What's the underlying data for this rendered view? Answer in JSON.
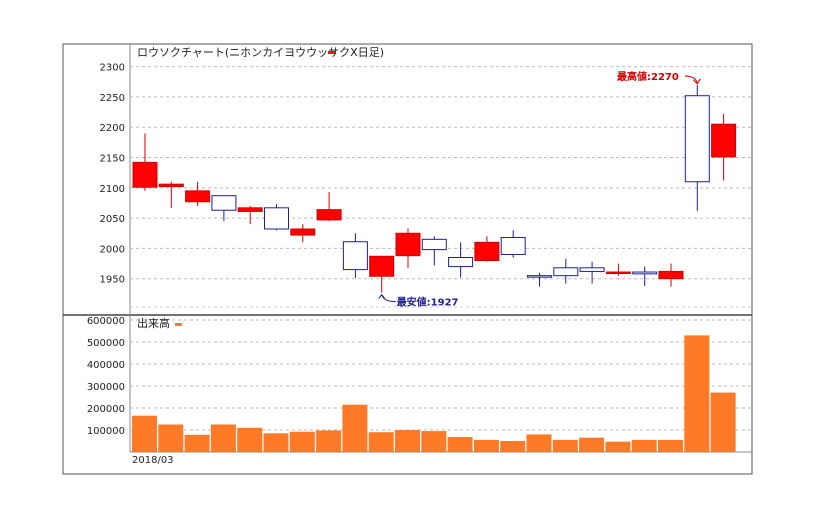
{
  "chart_data": [
    {
      "type": "candlestick",
      "title": "ロウソクチャート(ニホンカイヨウウッサクX日足)",
      "legend_color": "#e8161b",
      "colors": {
        "up": "#ffffff",
        "up_border": "#1f1f8f",
        "down": "#ff0000",
        "down_border": "#d00000"
      },
      "ylim": [
        1900,
        2310
      ],
      "yticks": [
        1950,
        2000,
        2050,
        2100,
        2150,
        2200,
        2250,
        2300
      ],
      "grid": true,
      "candles": [
        {
          "open": 2142,
          "high": 2190,
          "low": 2095,
          "close": 2101
        },
        {
          "open": 2106,
          "high": 2110,
          "low": 2067,
          "close": 2102
        },
        {
          "open": 2095,
          "high": 2110,
          "low": 2070,
          "close": 2077
        },
        {
          "open": 2063,
          "high": 2087,
          "low": 2045,
          "close": 2087
        },
        {
          "open": 2067,
          "high": 2070,
          "low": 2040,
          "close": 2061
        },
        {
          "open": 2032,
          "high": 2073,
          "low": 2030,
          "close": 2067
        },
        {
          "open": 2032,
          "high": 2040,
          "low": 2010,
          "close": 2022
        },
        {
          "open": 2064,
          "high": 2093,
          "low": 2045,
          "close": 2047
        },
        {
          "open": 1965,
          "high": 2025,
          "low": 1951,
          "close": 2011
        },
        {
          "open": 1987,
          "high": 1987,
          "low": 1927,
          "close": 1954
        },
        {
          "open": 2025,
          "high": 2033,
          "low": 1968,
          "close": 1988
        },
        {
          "open": 1998,
          "high": 2020,
          "low": 1972,
          "close": 2015
        },
        {
          "open": 1970,
          "high": 2010,
          "low": 1952,
          "close": 1985
        },
        {
          "open": 2010,
          "high": 2020,
          "low": 1978,
          "close": 1980
        },
        {
          "open": 1990,
          "high": 2030,
          "low": 1985,
          "close": 2018
        },
        {
          "open": 1953,
          "high": 1960,
          "low": 1937,
          "close": 1955
        },
        {
          "open": 1955,
          "high": 1983,
          "low": 1942,
          "close": 1968
        },
        {
          "open": 1962,
          "high": 1978,
          "low": 1942,
          "close": 1968
        },
        {
          "open": 1961,
          "high": 1975,
          "low": 1955,
          "close": 1959
        },
        {
          "open": 1958,
          "high": 1970,
          "low": 1938,
          "close": 1961
        },
        {
          "open": 1962,
          "high": 1975,
          "low": 1937,
          "close": 1950
        },
        {
          "open": 2110,
          "high": 2270,
          "low": 2062,
          "close": 2252
        },
        {
          "open": 2205,
          "high": 2222,
          "low": 2112,
          "close": 2151
        }
      ],
      "annotations": [
        {
          "text": "最高値:2270",
          "color": "#d00000",
          "candle": 21,
          "value": 2270
        },
        {
          "text": "最安値:1927",
          "color": "#1f1f8f",
          "candle": 9,
          "value": 1927
        }
      ]
    },
    {
      "type": "bar",
      "title": "出来高",
      "legend_color": "#ff7a26",
      "bar_color": "#ff7a26",
      "ylim": [
        0,
        610000
      ],
      "yticks": [
        100000,
        200000,
        300000,
        400000,
        500000,
        600000
      ],
      "grid": true,
      "xlabel": "2018/03",
      "values": [
        165000,
        125000,
        78000,
        125000,
        110000,
        85000,
        92000,
        98000,
        215000,
        90000,
        100000,
        95000,
        68000,
        55000,
        50000,
        80000,
        55000,
        65000,
        47000,
        55000,
        55000,
        530000,
        270000
      ]
    }
  ]
}
